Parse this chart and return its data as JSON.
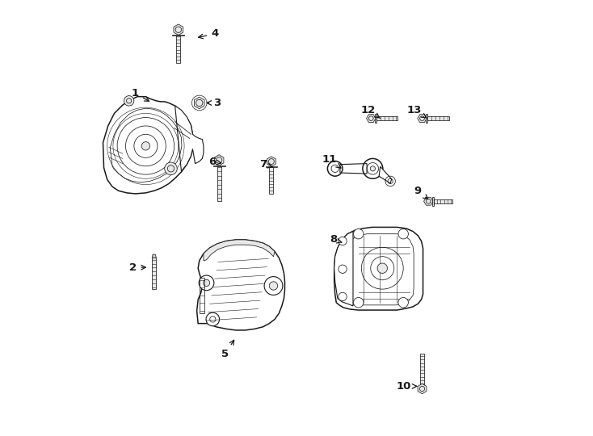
{
  "bg_color": "#ffffff",
  "line_color": "#1a1a1a",
  "figsize": [
    7.34,
    5.4
  ],
  "dpi": 100,
  "labels_data": {
    "1": {
      "lpos": [
        0.115,
        0.798
      ],
      "apos": [
        0.155,
        0.775
      ]
    },
    "2": {
      "lpos": [
        0.11,
        0.382
      ],
      "apos": [
        0.148,
        0.382
      ]
    },
    "3": {
      "lpos": [
        0.31,
        0.775
      ],
      "apos": [
        0.278,
        0.775
      ]
    },
    "4": {
      "lpos": [
        0.305,
        0.94
      ],
      "apos": [
        0.258,
        0.93
      ]
    },
    "5": {
      "lpos": [
        0.33,
        0.175
      ],
      "apos": [
        0.355,
        0.215
      ]
    },
    "6": {
      "lpos": [
        0.298,
        0.635
      ],
      "apos": [
        0.328,
        0.63
      ]
    },
    "7": {
      "lpos": [
        0.42,
        0.628
      ],
      "apos": [
        0.45,
        0.62
      ]
    },
    "8": {
      "lpos": [
        0.588,
        0.448
      ],
      "apos": [
        0.615,
        0.44
      ]
    },
    "9": {
      "lpos": [
        0.79,
        0.565
      ],
      "apos": [
        0.82,
        0.54
      ]
    },
    "10": {
      "lpos": [
        0.756,
        0.098
      ],
      "apos": [
        0.795,
        0.098
      ]
    },
    "11": {
      "lpos": [
        0.578,
        0.64
      ],
      "apos": [
        0.608,
        0.618
      ]
    },
    "12": {
      "lpos": [
        0.672,
        0.758
      ],
      "apos": [
        0.7,
        0.738
      ]
    },
    "13": {
      "lpos": [
        0.782,
        0.758
      ],
      "apos": [
        0.812,
        0.738
      ]
    }
  }
}
